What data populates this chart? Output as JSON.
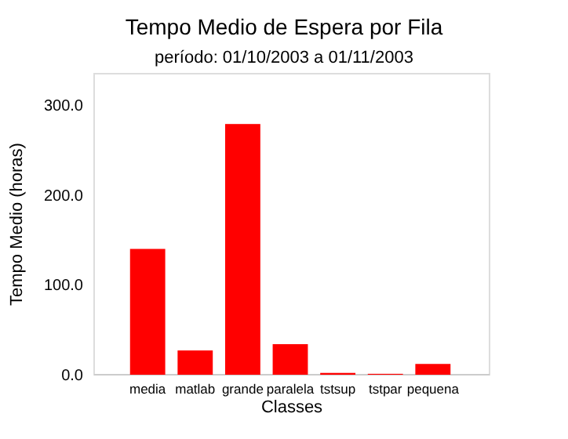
{
  "chart_data": {
    "type": "bar",
    "title": "Tempo Medio de Espera por Fila",
    "subtitle": "período: 01/10/2003 a 01/11/2003",
    "xlabel": "Classes",
    "ylabel": "Tempo Medio (horas)",
    "categories": [
      "media",
      "matlab",
      "grande",
      "paralela",
      "tstsup",
      "tstpar",
      "pequena"
    ],
    "values": [
      140,
      27,
      279,
      34,
      2,
      1,
      12
    ],
    "color": "#ff0000",
    "ylim": [
      0,
      335
    ],
    "yticks": [
      {
        "value": 0,
        "label": "0.0"
      },
      {
        "value": 100,
        "label": "100.0"
      },
      {
        "value": 200,
        "label": "200.0"
      },
      {
        "value": 300,
        "label": "300.0"
      }
    ],
    "grid": false
  }
}
